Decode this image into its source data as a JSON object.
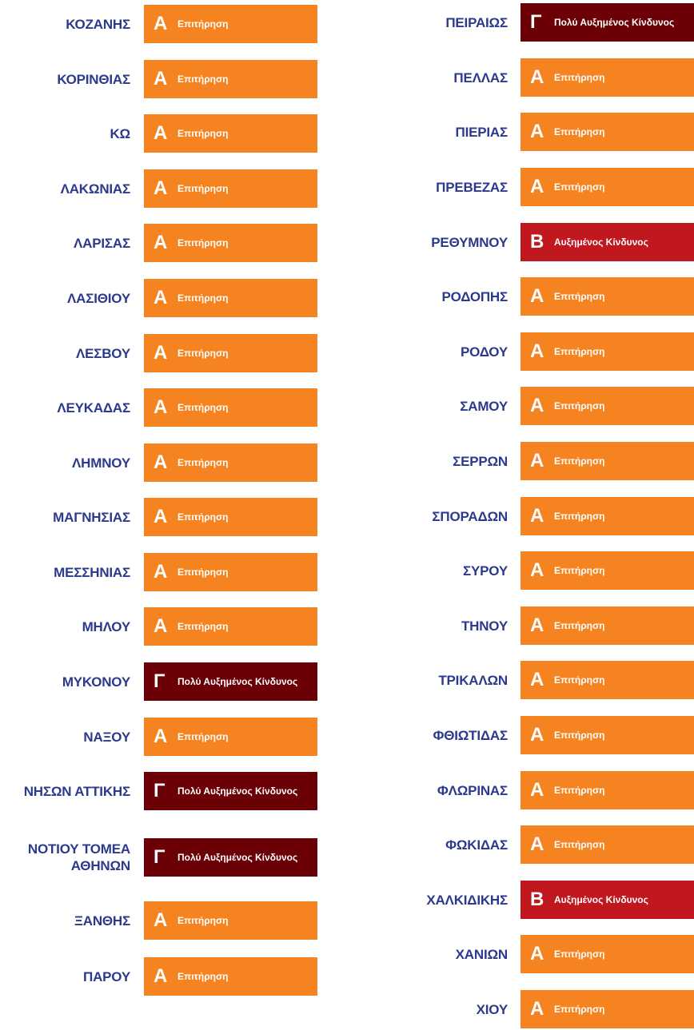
{
  "left_column": [
    {
      "name": "ΚΟΖΑΝΗΣ",
      "level": "A",
      "letter": "Α",
      "status": "Επιτήρηση"
    },
    {
      "name": "ΚΟΡΙΝΘΙΑΣ",
      "level": "A",
      "letter": "Α",
      "status": "Επιτήρηση"
    },
    {
      "name": "ΚΩ",
      "level": "A",
      "letter": "Α",
      "status": "Επιτήρηση"
    },
    {
      "name": "ΛΑΚΩΝΙΑΣ",
      "level": "A",
      "letter": "Α",
      "status": "Επιτήρηση"
    },
    {
      "name": "ΛΑΡΙΣΑΣ",
      "level": "A",
      "letter": "Α",
      "status": "Επιτήρηση"
    },
    {
      "name": "ΛΑΣΙΘΙΟΥ",
      "level": "A",
      "letter": "Α",
      "status": "Επιτήρηση"
    },
    {
      "name": "ΛΕΣΒΟΥ",
      "level": "A",
      "letter": "Α",
      "status": "Επιτήρηση"
    },
    {
      "name": "ΛΕΥΚΑΔΑΣ",
      "level": "A",
      "letter": "Α",
      "status": "Επιτήρηση"
    },
    {
      "name": "ΛΗΜΝΟΥ",
      "level": "A",
      "letter": "Α",
      "status": "Επιτήρηση"
    },
    {
      "name": "ΜΑΓΝΗΣΙΑΣ",
      "level": "A",
      "letter": "Α",
      "status": "Επιτήρηση"
    },
    {
      "name": "ΜΕΣΣΗΝΙΑΣ",
      "level": "A",
      "letter": "Α",
      "status": "Επιτήρηση"
    },
    {
      "name": "ΜΗΛΟΥ",
      "level": "A",
      "letter": "Α",
      "status": "Επιτήρηση"
    },
    {
      "name": "ΜΥΚΟΝΟΥ",
      "level": "G",
      "letter": "Γ",
      "status": "Πολύ Αυξημένος Κίνδυνος"
    },
    {
      "name": "ΝΑΞΟΥ",
      "level": "A",
      "letter": "Α",
      "status": "Επιτήρηση"
    },
    {
      "name": "ΝΗΣΩΝ ΑΤΤΙΚΗΣ",
      "level": "G",
      "letter": "Γ",
      "status": "Πολύ Αυξημένος Κίνδυνος"
    },
    {
      "name": "ΝΟΤΙΟΥ ΤΟΜΕΑ\nΑΘΗΝΩΝ",
      "level": "G",
      "letter": "Γ",
      "status": "Πολύ Αυξημένος Κίνδυνος"
    },
    {
      "name": "ΞΑΝΘΗΣ",
      "level": "A",
      "letter": "Α",
      "status": "Επιτήρηση"
    },
    {
      "name": "ΠΑΡΟΥ",
      "level": "A",
      "letter": "Α",
      "status": "Επιτήρηση"
    }
  ],
  "right_column": [
    {
      "name": "ΠΕΙΡΑΙΩΣ",
      "level": "G",
      "letter": "Γ",
      "status": "Πολύ Αυξημένος Κίνδυνος"
    },
    {
      "name": "ΠΕΛΛΑΣ",
      "level": "A",
      "letter": "Α",
      "status": "Επιτήρηση"
    },
    {
      "name": "ΠΙΕΡΙΑΣ",
      "level": "A",
      "letter": "Α",
      "status": "Επιτήρηση"
    },
    {
      "name": "ΠΡΕΒΕΖΑΣ",
      "level": "A",
      "letter": "Α",
      "status": "Επιτήρηση"
    },
    {
      "name": "ΡΕΘΥΜΝΟΥ",
      "level": "B",
      "letter": "Β",
      "status": "Αυξημένος Κίνδυνος"
    },
    {
      "name": "ΡΟΔΟΠΗΣ",
      "level": "A",
      "letter": "Α",
      "status": "Επιτήρηση"
    },
    {
      "name": "ΡΟΔΟΥ",
      "level": "A",
      "letter": "Α",
      "status": "Επιτήρηση"
    },
    {
      "name": "ΣΑΜΟΥ",
      "level": "A",
      "letter": "Α",
      "status": "Επιτήρηση"
    },
    {
      "name": "ΣΕΡΡΩΝ",
      "level": "A",
      "letter": "Α",
      "status": "Επιτήρηση"
    },
    {
      "name": "ΣΠΟΡΑΔΩΝ",
      "level": "A",
      "letter": "Α",
      "status": "Επιτήρηση"
    },
    {
      "name": "ΣΥΡΟΥ",
      "level": "A",
      "letter": "Α",
      "status": "Επιτήρηση"
    },
    {
      "name": "ΤΗΝΟΥ",
      "level": "A",
      "letter": "Α",
      "status": "Επιτήρηση"
    },
    {
      "name": "ΤΡΙΚΑΛΩΝ",
      "level": "A",
      "letter": "Α",
      "status": "Επιτήρηση"
    },
    {
      "name": "ΦΘΙΩΤΙΔΑΣ",
      "level": "A",
      "letter": "Α",
      "status": "Επιτήρηση"
    },
    {
      "name": "ΦΛΩΡΙΝΑΣ",
      "level": "A",
      "letter": "Α",
      "status": "Επιτήρηση"
    },
    {
      "name": "ΦΩΚΙΔΑΣ",
      "level": "A",
      "letter": "Α",
      "status": "Επιτήρηση"
    },
    {
      "name": "ΧΑΛΚΙΔΙΚΗΣ",
      "level": "B",
      "letter": "Β",
      "status": "Αυξημένος Κίνδυνος"
    },
    {
      "name": "ΧΑΝΙΩΝ",
      "level": "A",
      "letter": "Α",
      "status": "Επιτήρηση"
    },
    {
      "name": "ΧΙΟΥ",
      "level": "A",
      "letter": "Α",
      "status": "Επιτήρηση"
    }
  ],
  "colors": {
    "region_name": "#2b3a8c",
    "level_A": "#f5831f",
    "level_B": "#c1171f",
    "level_G": "#6b0006"
  }
}
